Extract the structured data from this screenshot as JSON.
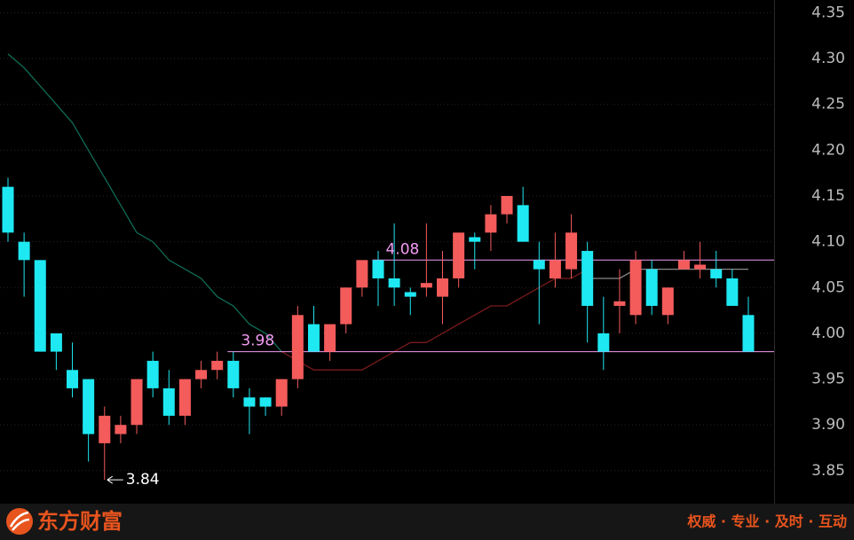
{
  "chart_data": {
    "type": "candlestick",
    "open": [
      4.16,
      4.1,
      4.08,
      4.0,
      3.96,
      3.95,
      3.88,
      3.89,
      3.9,
      3.97,
      3.94,
      3.91,
      3.95,
      3.96,
      3.97,
      3.93,
      3.93,
      3.92,
      3.95,
      4.01,
      3.98,
      4.01,
      4.05,
      4.08,
      4.06,
      4.045,
      4.05,
      4.04,
      4.06,
      4.105,
      4.11,
      4.13,
      4.14,
      4.08,
      4.06,
      4.07,
      4.09,
      4.0,
      4.03,
      4.02,
      4.07,
      4.02,
      4.07,
      4.07,
      4.07,
      4.06,
      4.02
    ],
    "close": [
      4.11,
      4.08,
      3.98,
      3.98,
      3.94,
      3.89,
      3.91,
      3.9,
      3.95,
      3.94,
      3.91,
      3.95,
      3.96,
      3.97,
      3.94,
      3.92,
      3.92,
      3.95,
      4.02,
      3.98,
      4.01,
      4.05,
      4.08,
      4.06,
      4.05,
      4.04,
      4.055,
      4.06,
      4.11,
      4.1,
      4.13,
      4.15,
      4.1,
      4.07,
      4.08,
      4.11,
      4.03,
      3.98,
      4.035,
      4.08,
      4.03,
      4.05,
      4.08,
      4.075,
      4.06,
      4.03,
      3.98
    ],
    "high": [
      4.17,
      4.11,
      4.08,
      4.0,
      3.99,
      3.95,
      3.92,
      3.91,
      3.95,
      3.98,
      3.96,
      3.95,
      3.97,
      3.98,
      3.98,
      3.94,
      3.93,
      3.95,
      4.03,
      4.03,
      4.01,
      4.05,
      4.08,
      4.09,
      4.12,
      4.05,
      4.12,
      4.09,
      4.11,
      4.11,
      4.14,
      4.15,
      4.16,
      4.1,
      4.11,
      4.13,
      4.1,
      4.04,
      4.07,
      4.09,
      4.08,
      4.05,
      4.09,
      4.1,
      4.09,
      4.07,
      4.04
    ],
    "low": [
      4.1,
      4.04,
      3.98,
      3.96,
      3.93,
      3.86,
      3.84,
      3.88,
      3.89,
      3.93,
      3.9,
      3.9,
      3.94,
      3.95,
      3.93,
      3.89,
      3.91,
      3.91,
      3.94,
      3.98,
      3.97,
      4.0,
      4.04,
      4.03,
      4.03,
      4.02,
      4.04,
      4.01,
      4.05,
      4.07,
      4.09,
      4.12,
      4.1,
      4.01,
      4.05,
      4.06,
      3.99,
      3.96,
      4.0,
      4.01,
      4.02,
      4.01,
      4.07,
      4.06,
      4.05,
      4.03,
      3.98
    ],
    "up_color": "#f45b5b",
    "down_color": "#1ee8f2",
    "lines": [
      {
        "color": "#0f6b55",
        "values": [
          4.305,
          4.29,
          4.27,
          4.25,
          4.23,
          4.2,
          4.17,
          4.14,
          4.11,
          4.1,
          4.08,
          4.07,
          4.06,
          4.04,
          4.03,
          4.01,
          4.0,
          3.98,
          null,
          null,
          null,
          null,
          null,
          null,
          null,
          null,
          null,
          null,
          null,
          null,
          null,
          null,
          null,
          null,
          null,
          null,
          null,
          null,
          null,
          null,
          null,
          null,
          null,
          null,
          null,
          null,
          null
        ]
      },
      {
        "color": "#7a1a1a",
        "values": [
          null,
          null,
          null,
          null,
          null,
          null,
          null,
          null,
          null,
          null,
          null,
          null,
          null,
          null,
          null,
          null,
          null,
          3.98,
          3.97,
          3.96,
          3.96,
          3.96,
          3.96,
          3.97,
          3.98,
          3.99,
          3.99,
          4.0,
          4.01,
          4.02,
          4.03,
          4.03,
          4.04,
          4.05,
          4.06,
          4.06,
          4.07,
          null,
          null,
          null,
          null,
          null,
          null,
          null,
          null,
          null,
          null
        ]
      },
      {
        "color": "#8a8a8a",
        "values": [
          null,
          null,
          null,
          null,
          null,
          null,
          null,
          null,
          null,
          null,
          null,
          null,
          null,
          null,
          null,
          null,
          null,
          null,
          null,
          null,
          null,
          null,
          null,
          null,
          null,
          null,
          null,
          null,
          null,
          null,
          null,
          null,
          null,
          null,
          null,
          null,
          4.06,
          4.06,
          4.06,
          4.07,
          4.07,
          4.07,
          4.07,
          4.07,
          4.07,
          4.07,
          4.07
        ]
      }
    ],
    "levels": [
      4.08,
      3.98
    ],
    "level_color": "#f49cf4",
    "low_mark": 3.84,
    "ylim": [
      3.815,
      4.364
    ],
    "yticks": [
      4.35,
      {
        "value": 4.3,
        "label": "4.30"
      },
      4.25,
      {
        "value": 4.2,
        "label": "4.20"
      },
      4.15,
      {
        "value": 4.1,
        "label": "4.10"
      },
      4.05,
      {
        "value": 4.0,
        "label": "4.00"
      },
      3.95,
      {
        "value": 3.9,
        "label": "3.90"
      },
      3.85
    ],
    "grid": true
  },
  "footer": {
    "brand": "东方财富",
    "slogan": "权威 · 专业 · 及时 · 互动"
  }
}
